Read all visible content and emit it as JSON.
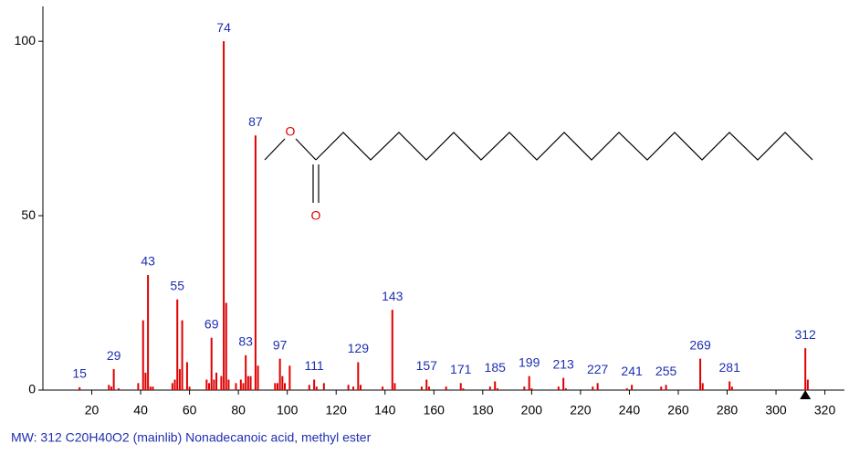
{
  "chart_data": {
    "type": "bar",
    "caption": "MW: 312 C20H40O2 (mainlib) Nonadecanoic acid, methyl ester",
    "color": "#e00000",
    "label_color": "#1f2fb0",
    "x": [
      15,
      29,
      43,
      55,
      69,
      74,
      83,
      87,
      97,
      111,
      129,
      143,
      157,
      171,
      185,
      199,
      213,
      227,
      241,
      255,
      269,
      281,
      312
    ],
    "values": [
      0.8,
      6,
      33,
      26,
      15,
      100,
      10,
      73,
      9,
      3,
      8,
      23,
      3,
      2,
      2.5,
      4,
      3.5,
      2,
      1.5,
      1.5,
      9,
      2.5,
      12
    ],
    "minor_x": [
      27,
      28,
      31,
      39,
      41,
      42,
      44,
      45,
      53,
      54,
      56,
      57,
      59,
      60,
      67,
      68,
      70,
      71,
      73,
      75,
      76,
      79,
      81,
      82,
      84,
      85,
      88,
      95,
      96,
      98,
      99,
      101,
      109,
      112,
      115,
      125,
      127,
      130,
      139,
      144,
      155,
      158,
      165,
      172,
      183,
      186,
      197,
      200,
      211,
      214,
      225,
      239,
      253,
      270,
      282,
      313
    ],
    "minor_values": [
      1.5,
      1,
      0.5,
      2,
      20,
      5,
      1,
      1,
      2,
      3,
      6,
      20,
      8,
      1,
      3,
      2,
      3,
      5,
      4,
      25,
      3,
      2,
      3,
      2,
      4,
      4,
      7,
      2,
      2,
      4,
      2,
      7,
      1.5,
      1,
      2,
      1.5,
      1,
      1.5,
      1,
      2,
      1,
      1,
      1,
      0.5,
      1,
      0.5,
      1,
      0.5,
      1,
      0.5,
      1,
      0.5,
      1,
      2,
      1,
      3
    ],
    "xlim": [
      0,
      328
    ],
    "xticks": [
      20,
      40,
      60,
      80,
      100,
      120,
      140,
      160,
      180,
      200,
      220,
      240,
      260,
      280,
      300,
      320
    ],
    "ylim": [
      0,
      110
    ],
    "yticks": [
      0,
      50,
      100
    ],
    "structure": {
      "atoms": [
        "O",
        "O"
      ]
    }
  }
}
